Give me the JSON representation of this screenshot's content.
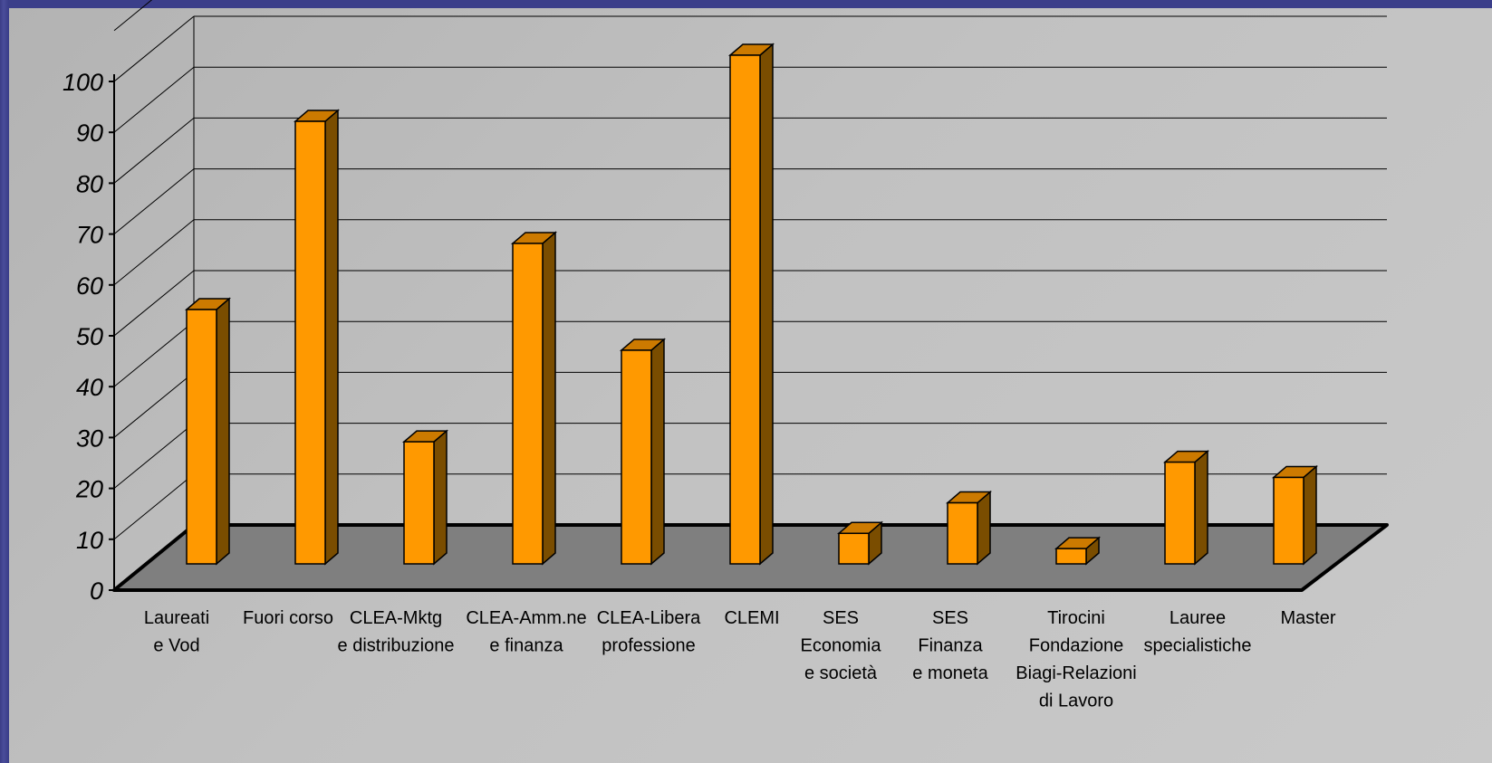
{
  "chart_data": {
    "type": "bar",
    "style": "3d-column",
    "categories": [
      [
        "Laureati",
        "e Vod"
      ],
      [
        "Fuori corso"
      ],
      [
        "CLEA-Mktg",
        "e distribuzione"
      ],
      [
        "CLEA-Amm.ne",
        "e finanza"
      ],
      [
        "CLEA-Libera",
        "professione"
      ],
      [
        "CLEMI"
      ],
      [
        "SES",
        "Economia",
        "e società"
      ],
      [
        "SES",
        "Finanza",
        "e moneta"
      ],
      [
        "Tirocini",
        "Fondazione",
        "Biagi-Relazioni",
        "di Lavoro"
      ],
      [
        "Lauree",
        "specialistiche"
      ],
      [
        "Master"
      ]
    ],
    "values": [
      50,
      87,
      24,
      63,
      42,
      100,
      6,
      12,
      3,
      20,
      17
    ],
    "yticks": [
      "0",
      "10",
      "20",
      "30",
      "40",
      "50",
      "60",
      "70",
      "80",
      "90",
      "100"
    ],
    "ylim": [
      0,
      110
    ],
    "grid": true,
    "legend": "none",
    "colors": {
      "bar_front": "#ff9900",
      "bar_side": "#7a4d00",
      "bar_top": "#cc7a00",
      "floor": "#7f7f7f",
      "wall": "#bdbdbd",
      "background_frame": "#3d3f8c"
    }
  }
}
